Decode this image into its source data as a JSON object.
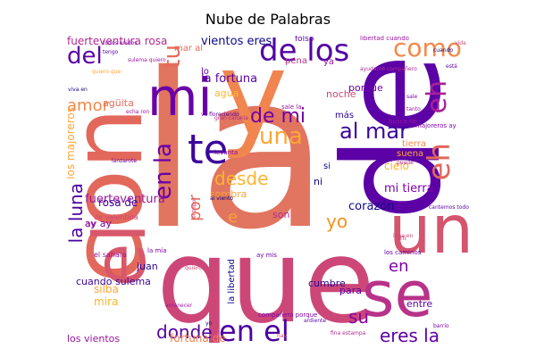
{
  "title": "Nube de Palabras",
  "palette": [
    "#0d0887",
    "#5c01a6",
    "#9c179e",
    "#cc4778",
    "#ed7953",
    "#fdb42f",
    "#f0f921"
  ],
  "words": [
    {
      "text": "la",
      "color": "#e1755f"
    },
    {
      "text": "y",
      "color": "#f08550"
    },
    {
      "text": "de",
      "color": "#5c01a6"
    },
    {
      "text": "que",
      "color": "#cc4778"
    },
    {
      "text": "se",
      "color": "#b83289"
    },
    {
      "text": "un",
      "color": "#d5546e"
    },
    {
      "text": "con",
      "color": "#e3685c"
    },
    {
      "text": "el",
      "color": "#d8576b"
    },
    {
      "text": "mi",
      "color": "#6a00a8"
    },
    {
      "text": "te",
      "color": "#3d049b"
    },
    {
      "text": "en el",
      "color": "#4c02a1"
    },
    {
      "text": "eh",
      "color": "#e0685c"
    },
    {
      "text": "eh",
      "color": "#a72197"
    },
    {
      "text": "de los",
      "color": "#5302a3"
    },
    {
      "text": "como",
      "color": "#f48849"
    },
    {
      "text": "del",
      "color": "#5c01a6"
    },
    {
      "text": "tu",
      "color": "#e76a59"
    },
    {
      "text": "una",
      "color": "#fca636"
    },
    {
      "text": "al mar",
      "color": "#3a049a"
    },
    {
      "text": "en la",
      "color": "#6a00a8"
    },
    {
      "text": "de mi",
      "color": "#7201a8"
    },
    {
      "text": "la luna",
      "color": "#4b03a1"
    },
    {
      "text": "desde",
      "color": "#fdb42f"
    },
    {
      "text": "yo",
      "color": "#f7931e"
    },
    {
      "text": "eres la",
      "color": "#5e00a6"
    },
    {
      "text": "donde",
      "color": "#5302a3"
    },
    {
      "text": "su",
      "color": "#8104a7"
    },
    {
      "text": "en",
      "color": "#7e03a8"
    },
    {
      "text": "amor",
      "color": "#f48849"
    },
    {
      "text": "por",
      "color": "#e66c5c"
    },
    {
      "text": "e",
      "color": "#f8a23a"
    },
    {
      "text": "los majoreros",
      "color": "#fca636"
    },
    {
      "text": "fuerteventura",
      "color": "#9a179b"
    },
    {
      "text": "fuerteventura rosa",
      "color": "#b12a90"
    },
    {
      "text": "vientos eres",
      "color": "#0d0887"
    },
    {
      "text": "la fortuna",
      "color": "#5601a4"
    },
    {
      "text": "mi tierra",
      "color": "#7e03a8"
    },
    {
      "text": "cielo",
      "color": "#fdb42f"
    },
    {
      "text": "corazón",
      "color": "#0d0887"
    },
    {
      "text": "mira",
      "color": "#fdb42f"
    },
    {
      "text": "silba",
      "color": "#fca636"
    },
    {
      "text": "fortuna de",
      "color": "#f0804e"
    },
    {
      "text": "los vientos",
      "color": "#9c179e"
    },
    {
      "text": "cuando sulema",
      "color": "#3a049a"
    },
    {
      "text": "rosa de",
      "color": "#3a049a"
    },
    {
      "text": "ay ay",
      "color": "#7e03a8"
    },
    {
      "text": "cumbre",
      "color": "#2a0593"
    },
    {
      "text": "entre",
      "color": "#5c01a6"
    },
    {
      "text": "juan",
      "color": "#2a0593"
    },
    {
      "text": "noche",
      "color": "#cc4778"
    },
    {
      "text": "agüita",
      "color": "#e66c5c"
    },
    {
      "text": "agua",
      "color": "#fdb42f"
    },
    {
      "text": "porque",
      "color": "#6a00a8"
    },
    {
      "text": "sombra",
      "color": "#f8a23a"
    },
    {
      "text": "ni",
      "color": "#0d0887"
    },
    {
      "text": "son",
      "color": "#b12a90"
    },
    {
      "text": "suena",
      "color": "#fca636"
    },
    {
      "text": "tierra",
      "color": "#f48849"
    },
    {
      "text": "para",
      "color": "#5c01a6"
    },
    {
      "text": "si",
      "color": "#0d0887"
    },
    {
      "text": "lo",
      "color": "#5c01a6"
    },
    {
      "text": "pena",
      "color": "#b83289"
    },
    {
      "text": "ya",
      "color": "#9c179e"
    },
    {
      "text": "mar al",
      "color": "#e66c5c"
    },
    {
      "text": "la libertad",
      "color": "#0d0887"
    },
    {
      "text": "más",
      "color": "#2a0593"
    },
    {
      "text": "ay",
      "color": "#9c179e"
    },
    {
      "text": "folso",
      "color": "#5c01a6"
    },
    {
      "text": "de valentina",
      "color": "#cc4778"
    },
    {
      "text": "levanta",
      "color": "#7e03a8"
    },
    {
      "text": "el sahara",
      "color": "#9c179e"
    },
    {
      "text": "hay",
      "color": "#cc4778"
    },
    {
      "text": "ay mis",
      "color": "#6a00a8"
    },
    {
      "text": "barrio",
      "color": "#7e03a8"
    },
    {
      "text": "fina estampa",
      "color": "#b12a90"
    },
    {
      "text": "ardiente",
      "color": "#5c01a6"
    },
    {
      "text": "mi",
      "color": "#cc4778"
    },
    {
      "text": "los caminos",
      "color": "#6a00a8"
    },
    {
      "text": "la mía",
      "color": "#7e03a8"
    },
    {
      "text": "compañero porque",
      "color": "#7e03a8"
    },
    {
      "text": "quiero",
      "color": "#cc4778"
    },
    {
      "text": "amanecer",
      "color": "#9c179e"
    },
    {
      "text": "lanzarote",
      "color": "#6a00a8"
    },
    {
      "text": "luna en",
      "color": "#cc4778"
    },
    {
      "text": "majoreros ay",
      "color": "#7e03a8"
    },
    {
      "text": "busca de",
      "color": "#9c179e"
    },
    {
      "text": "cuando",
      "color": "#0d0887"
    },
    {
      "text": "libertad cuando",
      "color": "#9c179e"
    },
    {
      "text": "está",
      "color": "#5c01a6"
    },
    {
      "text": "vida",
      "color": "#cc4778"
    },
    {
      "text": "ayudame compañero",
      "color": "#b12a90"
    },
    {
      "text": "sale la",
      "color": "#9c179e"
    },
    {
      "text": "gran canaria",
      "color": "#b12a90"
    },
    {
      "text": "va floreciendo",
      "color": "#5c01a6"
    },
    {
      "text": "al viento",
      "color": "#0d0887"
    },
    {
      "text": "el tripol",
      "color": "#cc4778"
    },
    {
      "text": "echa ron",
      "color": "#9c179e"
    },
    {
      "text": "viva en",
      "color": "#0d0887"
    },
    {
      "text": "quiero que",
      "color": "#fca636"
    },
    {
      "text": "yo",
      "color": "#0d0887"
    },
    {
      "text": "todos unidos",
      "color": "#7e03a8"
    },
    {
      "text": "tengo",
      "color": "#5c01a6"
    },
    {
      "text": "sulema quiero",
      "color": "#9c179e"
    },
    {
      "text": "cantemos todos",
      "color": "#5c01a6"
    },
    {
      "text": "puede",
      "color": "#b12a90"
    },
    {
      "text": "sale",
      "color": "#7e03a8"
    },
    {
      "text": "tanto",
      "color": "#9c179e"
    }
  ]
}
